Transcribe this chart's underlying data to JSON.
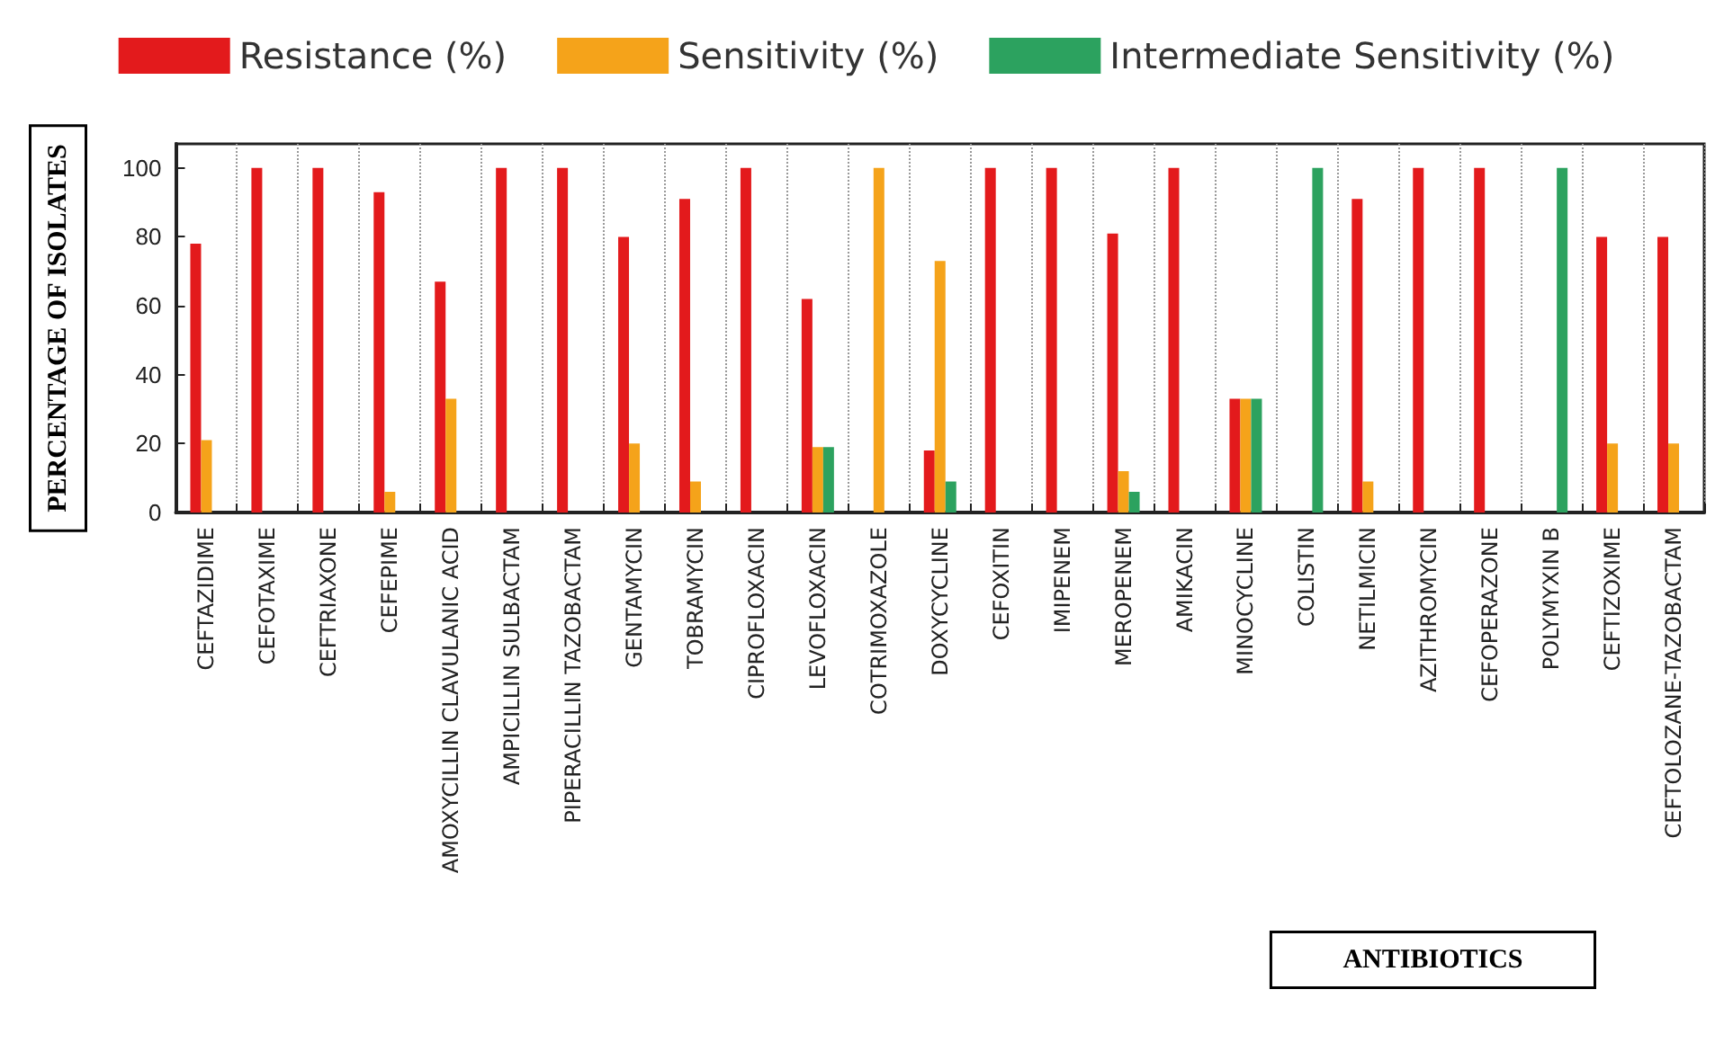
{
  "chart_data": {
    "type": "bar",
    "ylabel": "PERCENTAGE OF ISOLATES",
    "xlabel": "ANTIBIOTICS",
    "categories": [
      "CEFTAZIDIME",
      "CEFOTAXIME",
      "CEFTRIAXONE",
      "CEFEPIME",
      "AMOXYCILLIN CLAVULANIC ACID",
      "AMPICILLIN SULBACTAM",
      "PIPERACILLIN TAZOBACTAM",
      "GENTAMYCIN",
      "TOBRAMYCIN",
      "CIPROFLOXACIN",
      "LEVOFLOXACIN",
      "COTRIMOXAZOLE",
      "DOXYCYCLINE",
      "CEFOXITIN",
      "IMIPENEM",
      "MEROPENEM",
      "AMIKACIN",
      "MINOCYCLINE",
      "COLISTIN",
      "NETILMICIN",
      "AZITHROMYCIN",
      "CEFOPERAZONE",
      "POLYMYXIN B",
      "CEFTIZOXIME",
      "CEFTOLOZANE-TAZOBACTAM"
    ],
    "series": [
      {
        "name": "Resistance (%)",
        "color": "#e31a1c",
        "values": [
          78,
          100,
          100,
          93,
          67,
          100,
          100,
          80,
          91,
          100,
          62,
          0,
          18,
          100,
          100,
          81,
          100,
          33,
          0,
          91,
          100,
          100,
          0,
          80,
          80
        ]
      },
      {
        "name": "Sensitivity (%)",
        "color": "#f5a31a",
        "values": [
          21,
          0,
          0,
          6,
          33,
          0,
          0,
          20,
          9,
          0,
          19,
          100,
          73,
          0,
          0,
          12,
          0,
          33,
          0,
          9,
          0,
          0,
          0,
          20,
          20
        ]
      },
      {
        "name": "Intermediate Sensitivity (%)",
        "color": "#2ca25f",
        "values": [
          0,
          0,
          0,
          0,
          0,
          0,
          0,
          0,
          0,
          0,
          19,
          0,
          9,
          0,
          0,
          6,
          0,
          33,
          100,
          0,
          0,
          0,
          100,
          0,
          0
        ]
      }
    ],
    "ylim": [
      0,
      107
    ],
    "yticks": [
      0,
      20,
      40,
      60,
      80,
      100
    ],
    "grid": "x",
    "legend": "top"
  }
}
